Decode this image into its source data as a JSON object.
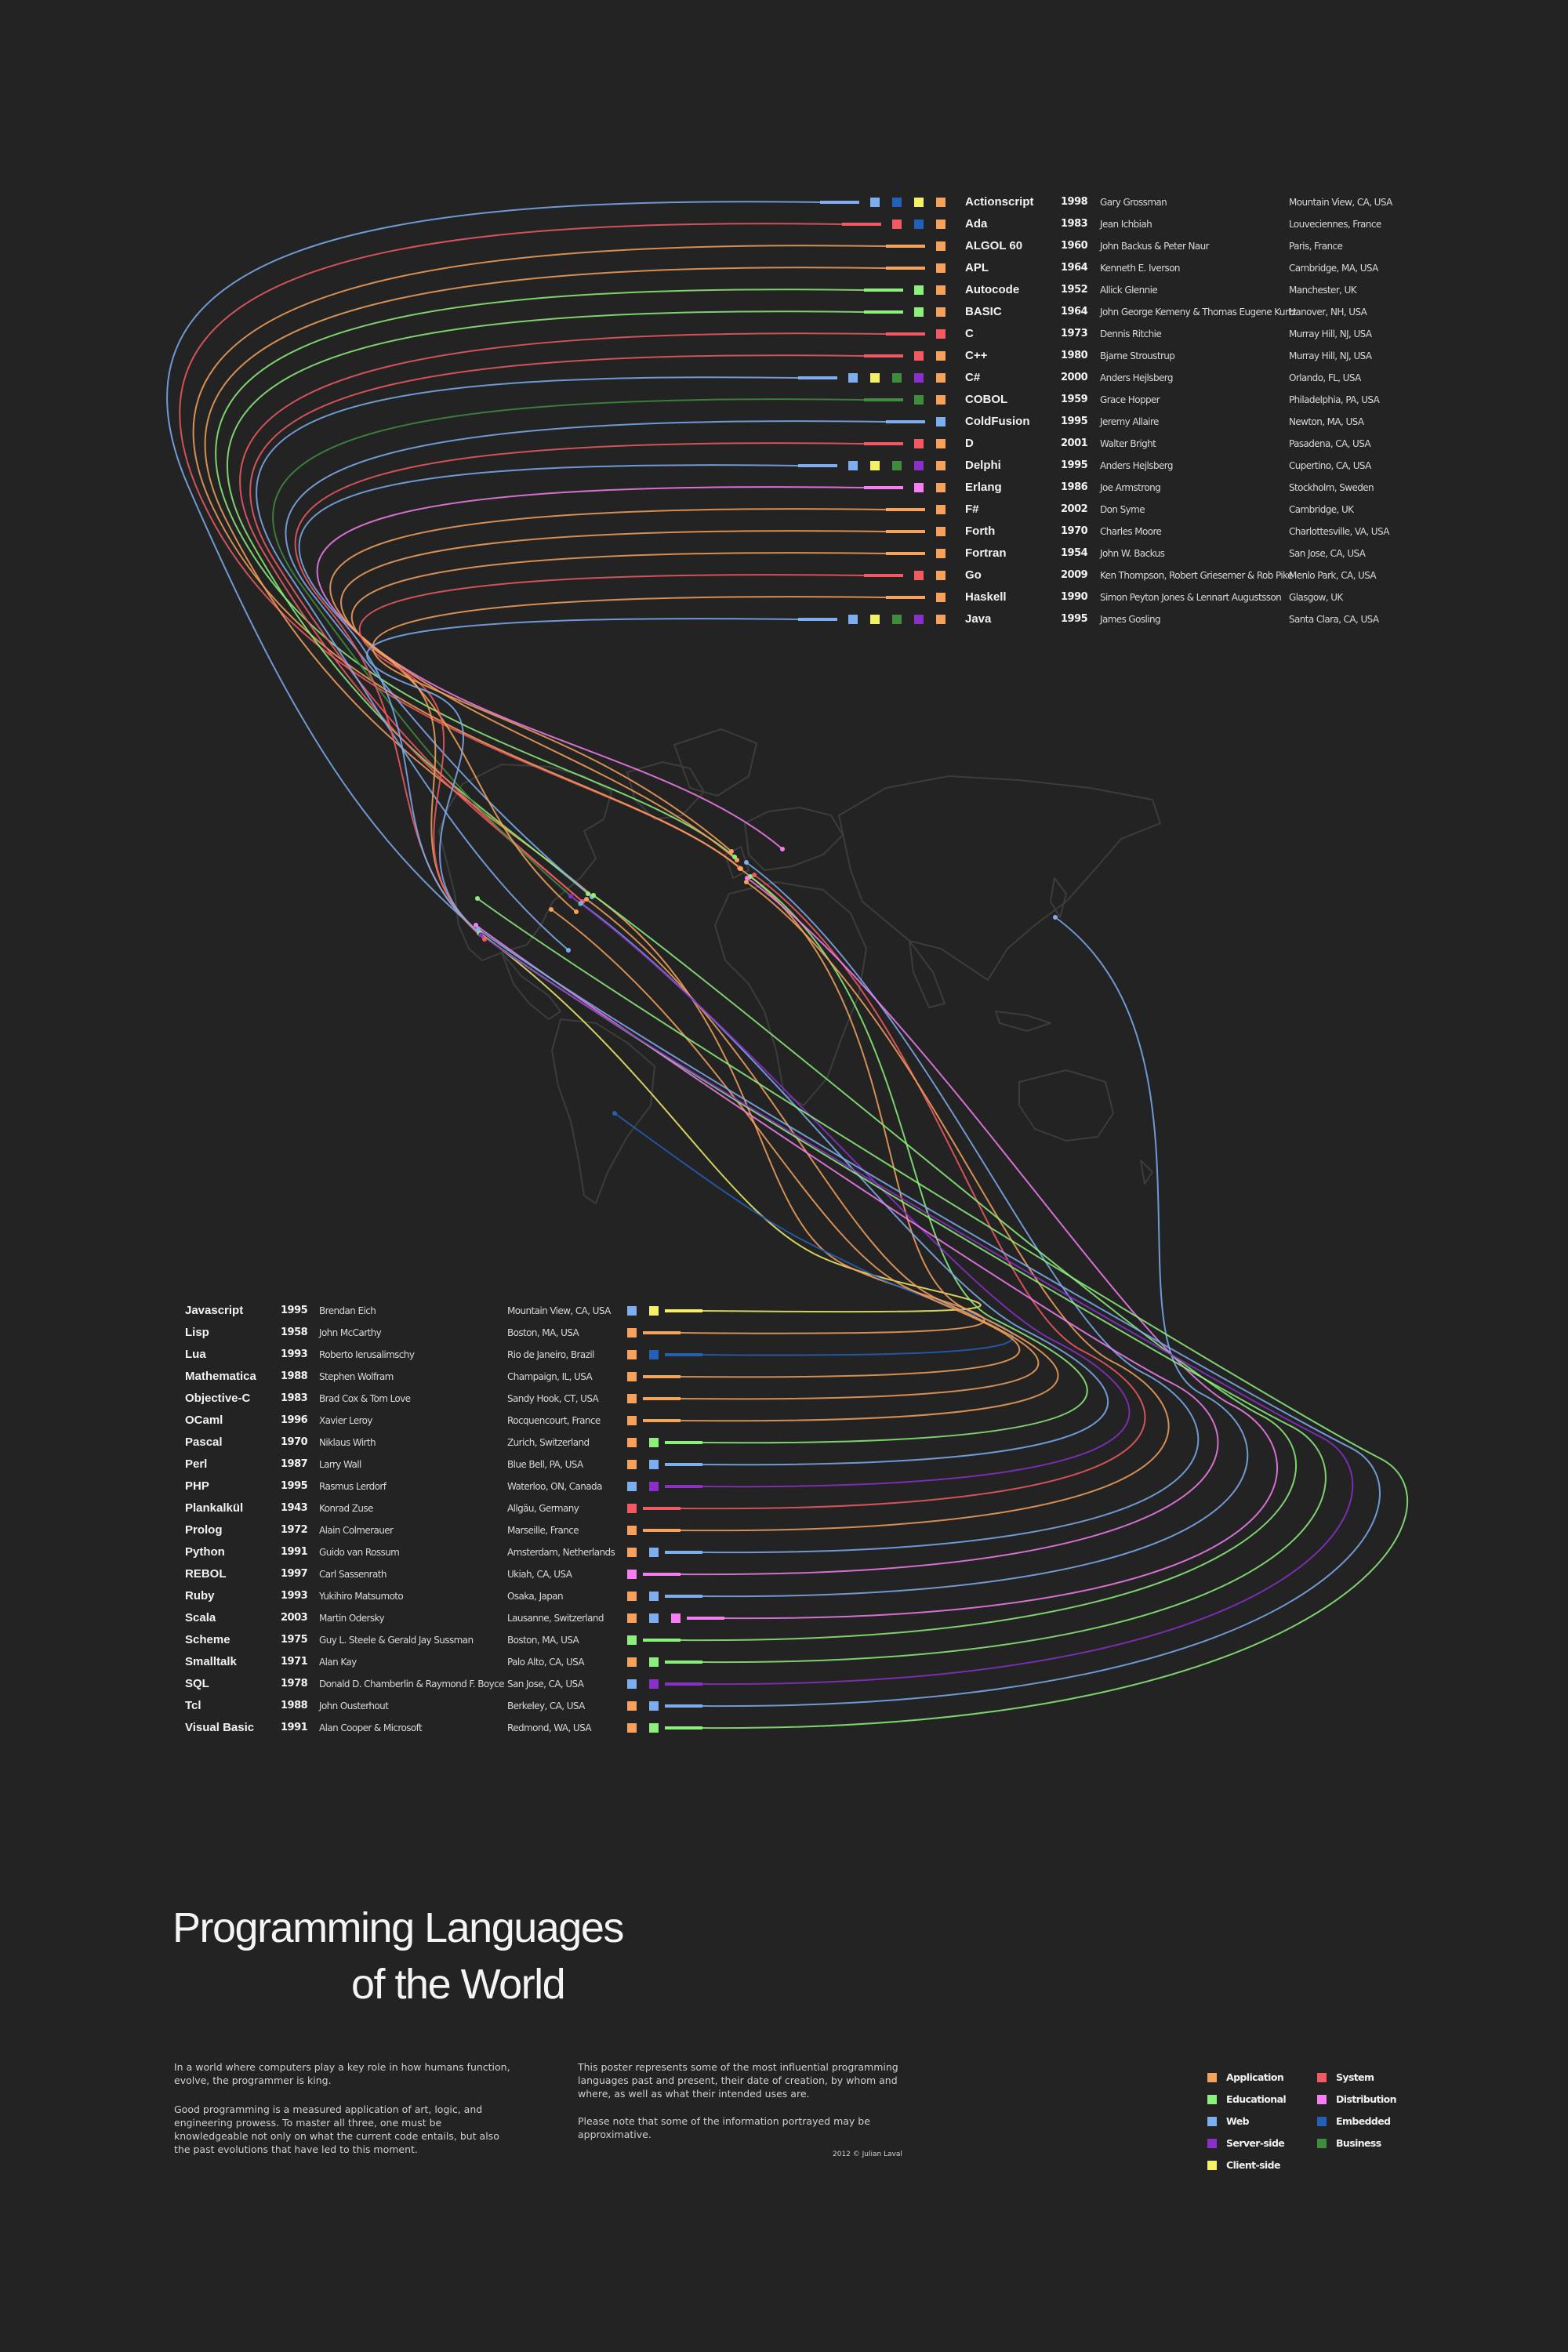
{
  "poster": {
    "title_line1": "Programming Languages",
    "title_line2": "of the World",
    "para_left_1": "In a world where computers play a key role in how humans function, evolve, the programmer is king.",
    "para_left_2": "Good programming is a measured application of art, logic, and engineering prowess. To master all three, one must be knowledgeable not only on what the current code entails, but also the past evolutions that have led to this moment.",
    "para_right_1": "This poster represents some of the most influential programming languages past and present, their date of creation, by whom and where, as well as what their intended uses are.",
    "para_right_2": "Please note that some of the information portrayed may be approximative.",
    "credit": "2012 © Julian Laval"
  },
  "colors": {
    "Application": "#f5a25d",
    "Educational": "#8ef07c",
    "Web": "#7eaef0",
    "Server-side": "#8a2fc9",
    "Client-side": "#f5f06a",
    "System": "#f25a63",
    "Distribution": "#f57ef0",
    "Embedded": "#2360b8",
    "Business": "#3f8c3f"
  },
  "legend": [
    {
      "label": "Application",
      "key": "Application"
    },
    {
      "label": "Educational",
      "key": "Educational"
    },
    {
      "label": "Web",
      "key": "Web"
    },
    {
      "label": "Server-side",
      "key": "Server-side"
    },
    {
      "label": "Client-side",
      "key": "Client-side"
    },
    {
      "label": "System",
      "key": "System"
    },
    {
      "label": "Distribution",
      "key": "Distribution"
    },
    {
      "label": "Embedded",
      "key": "Embedded"
    },
    {
      "label": "Business",
      "key": "Business"
    }
  ],
  "top_languages": [
    {
      "name": "Actionscript",
      "year": "1998",
      "creator": "Gary Grossman",
      "location": "Mountain View, CA, USA",
      "uses": [
        "Web",
        "Embedded",
        "Client-side",
        "Application"
      ]
    },
    {
      "name": "Ada",
      "year": "1983",
      "creator": "Jean Ichbiah",
      "location": "Louveciennes, France",
      "uses": [
        "System",
        "Embedded",
        "Application"
      ]
    },
    {
      "name": "ALGOL 60",
      "year": "1960",
      "creator": "John Backus & Peter Naur",
      "location": "Paris, France",
      "uses": [
        "Application"
      ]
    },
    {
      "name": "APL",
      "year": "1964",
      "creator": "Kenneth E. Iverson",
      "location": "Cambridge, MA, USA",
      "uses": [
        "Application"
      ]
    },
    {
      "name": "Autocode",
      "year": "1952",
      "creator": "Allick Glennie",
      "location": "Manchester, UK",
      "uses": [
        "Educational",
        "Application"
      ]
    },
    {
      "name": "BASIC",
      "year": "1964",
      "creator": "John George Kemeny & Thomas Eugene Kurtz",
      "location": "Hanover, NH, USA",
      "uses": [
        "Educational",
        "Application"
      ]
    },
    {
      "name": "C",
      "year": "1973",
      "creator": "Dennis Ritchie",
      "location": "Murray Hill, NJ, USA",
      "uses": [
        "System"
      ]
    },
    {
      "name": "C++",
      "year": "1980",
      "creator": "Bjarne Stroustrup",
      "location": "Murray Hill, NJ, USA",
      "uses": [
        "System",
        "Application"
      ]
    },
    {
      "name": "C#",
      "year": "2000",
      "creator": "Anders Hejlsberg",
      "location": "Orlando, FL, USA",
      "uses": [
        "Web",
        "Client-side",
        "Business",
        "Server-side",
        "Application"
      ]
    },
    {
      "name": "COBOL",
      "year": "1959",
      "creator": "Grace Hopper",
      "location": "Philadelphia, PA, USA",
      "uses": [
        "Business",
        "Application"
      ]
    },
    {
      "name": "ColdFusion",
      "year": "1995",
      "creator": "Jeremy Allaire",
      "location": "Newton, MA, USA",
      "uses": [
        "Web"
      ]
    },
    {
      "name": "D",
      "year": "2001",
      "creator": "Walter Bright",
      "location": "Pasadena, CA, USA",
      "uses": [
        "System",
        "Application"
      ]
    },
    {
      "name": "Delphi",
      "year": "1995",
      "creator": "Anders Hejlsberg",
      "location": "Cupertino, CA, USA",
      "uses": [
        "Web",
        "Client-side",
        "Business",
        "Server-side",
        "Application"
      ]
    },
    {
      "name": "Erlang",
      "year": "1986",
      "creator": "Joe Armstrong",
      "location": "Stockholm, Sweden",
      "uses": [
        "Distribution",
        "Application"
      ]
    },
    {
      "name": "F#",
      "year": "2002",
      "creator": "Don Syme",
      "location": "Cambridge, UK",
      "uses": [
        "Application"
      ]
    },
    {
      "name": "Forth",
      "year": "1970",
      "creator": "Charles Moore",
      "location": "Charlottesville, VA, USA",
      "uses": [
        "Application"
      ]
    },
    {
      "name": "Fortran",
      "year": "1954",
      "creator": "John W. Backus",
      "location": "San Jose, CA, USA",
      "uses": [
        "Application"
      ]
    },
    {
      "name": "Go",
      "year": "2009",
      "creator": "Ken Thompson, Robert Griesemer & Rob Pike",
      "location": "Menlo Park, CA, USA",
      "uses": [
        "System",
        "Application"
      ]
    },
    {
      "name": "Haskell",
      "year": "1990",
      "creator": "Simon Peyton Jones & Lennart Augustsson",
      "location": "Glasgow, UK",
      "uses": [
        "Application"
      ]
    },
    {
      "name": "Java",
      "year": "1995",
      "creator": "James Gosling",
      "location": "Santa Clara, CA, USA",
      "uses": [
        "Web",
        "Client-side",
        "Business",
        "Server-side",
        "Application"
      ]
    }
  ],
  "bottom_languages": [
    {
      "name": "Javascript",
      "year": "1995",
      "creator": "Brendan Eich",
      "location": "Mountain View, CA, USA",
      "uses": [
        "Web",
        "Client-side"
      ]
    },
    {
      "name": "Lisp",
      "year": "1958",
      "creator": "John McCarthy",
      "location": "Boston, MA, USA",
      "uses": [
        "Application"
      ]
    },
    {
      "name": "Lua",
      "year": "1993",
      "creator": "Roberto Ierusalimschy",
      "location": "Rio de Janeiro, Brazil",
      "uses": [
        "Application",
        "Embedded"
      ]
    },
    {
      "name": "Mathematica",
      "year": "1988",
      "creator": "Stephen Wolfram",
      "location": "Champaign, IL, USA",
      "uses": [
        "Application"
      ]
    },
    {
      "name": "Objective-C",
      "year": "1983",
      "creator": "Brad Cox & Tom Love",
      "location": "Sandy Hook, CT, USA",
      "uses": [
        "Application"
      ]
    },
    {
      "name": "OCaml",
      "year": "1996",
      "creator": "Xavier Leroy",
      "location": "Rocquencourt, France",
      "uses": [
        "Application"
      ]
    },
    {
      "name": "Pascal",
      "year": "1970",
      "creator": "Niklaus Wirth",
      "location": "Zurich, Switzerland",
      "uses": [
        "Application",
        "Educational"
      ]
    },
    {
      "name": "Perl",
      "year": "1987",
      "creator": "Larry Wall",
      "location": "Blue Bell, PA, USA",
      "uses": [
        "Application",
        "Web"
      ]
    },
    {
      "name": "PHP",
      "year": "1995",
      "creator": "Rasmus Lerdorf",
      "location": "Waterloo, ON, Canada",
      "uses": [
        "Web",
        "Server-side"
      ]
    },
    {
      "name": "Plankalkül",
      "year": "1943",
      "creator": "Konrad Zuse",
      "location": "Allgäu, Germany",
      "uses": [
        "System"
      ]
    },
    {
      "name": "Prolog",
      "year": "1972",
      "creator": "Alain Colmerauer",
      "location": "Marseille, France",
      "uses": [
        "Application"
      ]
    },
    {
      "name": "Python",
      "year": "1991",
      "creator": "Guido van Rossum",
      "location": "Amsterdam, Netherlands",
      "uses": [
        "Application",
        "Web"
      ]
    },
    {
      "name": "REBOL",
      "year": "1997",
      "creator": "Carl Sassenrath",
      "location": "Ukiah, CA, USA",
      "uses": [
        "Distribution"
      ]
    },
    {
      "name": "Ruby",
      "year": "1993",
      "creator": "Yukihiro Matsumoto",
      "location": "Osaka, Japan",
      "uses": [
        "Application",
        "Web"
      ]
    },
    {
      "name": "Scala",
      "year": "2003",
      "creator": "Martin Odersky",
      "location": "Lausanne, Switzerland",
      "uses": [
        "Application",
        "Web",
        "Distribution"
      ]
    },
    {
      "name": "Scheme",
      "year": "1975",
      "creator": "Guy L. Steele & Gerald Jay Sussman",
      "location": "Boston, MA, USA",
      "uses": [
        "Educational"
      ]
    },
    {
      "name": "Smalltalk",
      "year": "1971",
      "creator": "Alan Kay",
      "location": "Palo Alto, CA, USA",
      "uses": [
        "Application",
        "Educational"
      ]
    },
    {
      "name": "SQL",
      "year": "1978",
      "creator": "Donald D. Chamberlin & Raymond F. Boyce",
      "location": "San Jose, CA, USA",
      "uses": [
        "Web",
        "Server-side"
      ]
    },
    {
      "name": "Tcl",
      "year": "1988",
      "creator": "John Ousterhout",
      "location": "Berkeley, CA, USA",
      "uses": [
        "Application",
        "Web"
      ]
    },
    {
      "name": "Visual Basic",
      "year": "1991",
      "creator": "Alan Cooper & Microsoft",
      "location": "Redmond, WA, USA",
      "uses": [
        "Application",
        "Educational"
      ]
    }
  ]
}
